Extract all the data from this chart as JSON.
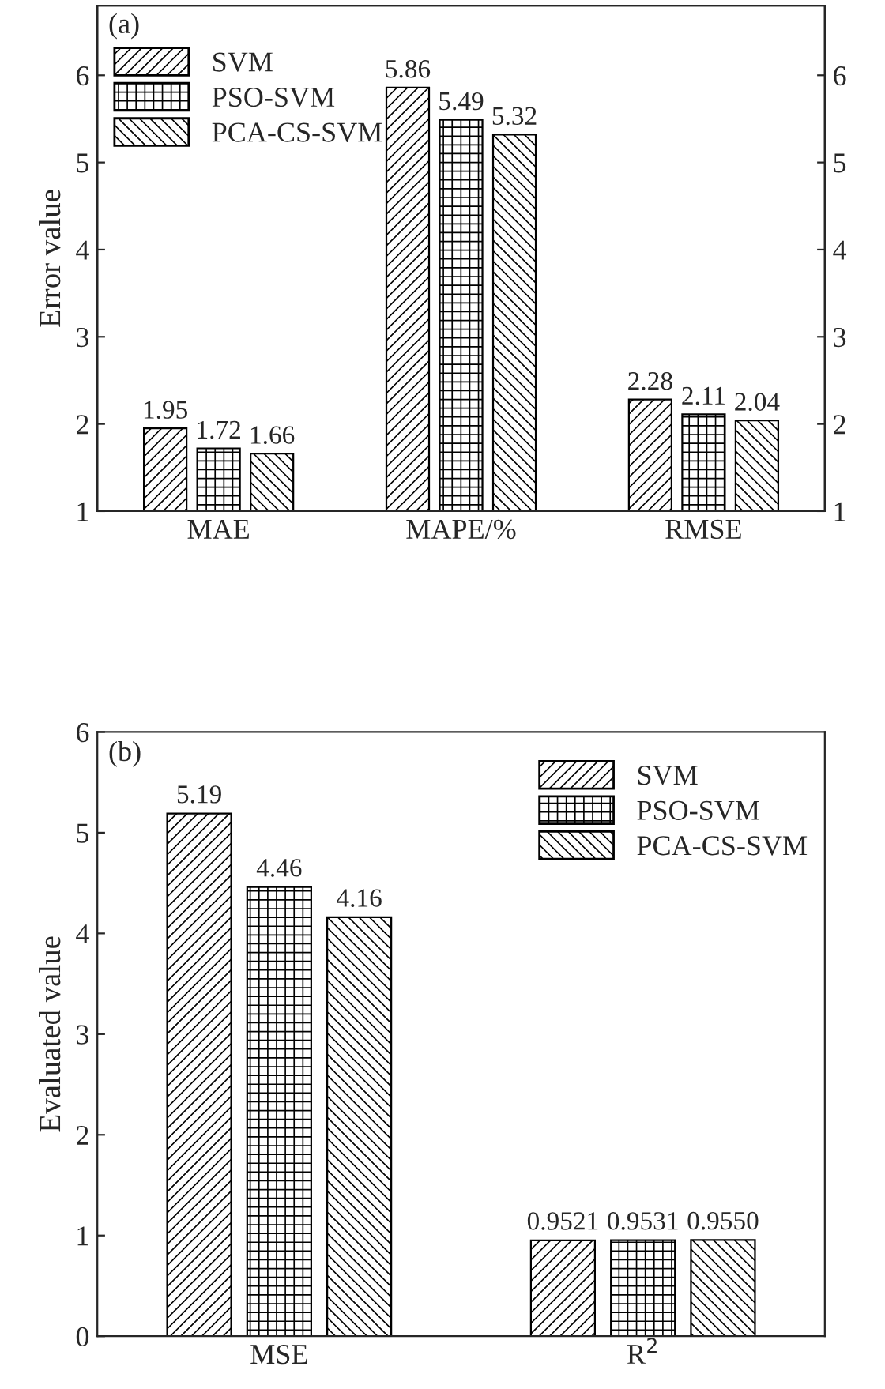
{
  "chart_data": [
    {
      "type": "bar",
      "ylabel": "Error value",
      "categories": [
        "MAE",
        "MAPE/%",
        "RMSE"
      ],
      "series": [
        {
          "name": "SVM",
          "color": "#000000",
          "values": [
            1.95,
            5.86,
            2.28
          ]
        },
        {
          "name": "PSO-SVM",
          "color": "#000000",
          "values": [
            1.72,
            5.49,
            2.11
          ]
        },
        {
          "name": "PCA-CS-SVM",
          "color": "#000000",
          "values": [
            1.66,
            5.32,
            2.04
          ]
        }
      ],
      "ylim": [
        1,
        6.8
      ],
      "yticks": [
        1,
        2,
        3,
        4,
        5,
        6
      ],
      "y2lim": [
        1,
        6.8
      ],
      "y2ticks": [
        1,
        2,
        3,
        4,
        5,
        6
      ],
      "data_labels": true,
      "legend": "top left",
      "annotations": [
        "(a)"
      ]
    },
    {
      "type": "bar",
      "ylabel": "Evaluated value",
      "categories": [
        "MSE",
        "R$^{2}$"
      ],
      "series": [
        {
          "name": "SVM",
          "color": "#000000",
          "values": [
            5.19,
            0.9521
          ],
          "value_labels": [
            "5.19",
            "0.9521"
          ]
        },
        {
          "name": "PSO-SVM",
          "color": "#000000",
          "values": [
            4.46,
            0.9531
          ],
          "value_labels": [
            "4.46",
            "0.9531"
          ]
        },
        {
          "name": "PCA-CS-SVM",
          "color": "#000000",
          "values": [
            4.16,
            0.955
          ],
          "value_labels": [
            "4.16",
            "0.9550"
          ]
        }
      ],
      "ylim": [
        0,
        6
      ],
      "yticks": [
        0,
        1,
        2,
        3,
        4,
        5,
        6
      ],
      "legend": "top right",
      "annotations": [
        "(b)"
      ]
    }
  ]
}
